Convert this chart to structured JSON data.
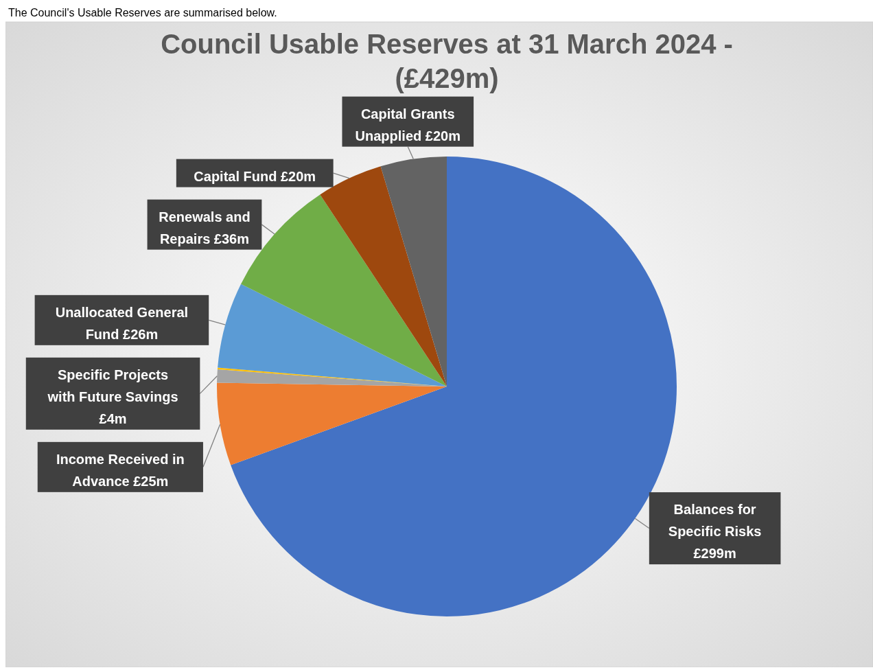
{
  "chart_data": {
    "type": "pie",
    "title": "Council Usable Reserves at 31 March 2024 - (£429m)",
    "annotations": [
      "The Council's Usable Reserves are summarised below."
    ],
    "categories": [
      "Balances for Specific Risks",
      "Income Received in Advance",
      "Specific Projects with Future Savings",
      null,
      "Unallocated General Fund",
      "Renewals and Repairs",
      "Capital Fund",
      "Capital Grants Unapplied"
    ],
    "values": [
      299,
      25,
      4,
      0.5,
      26,
      36,
      20,
      20
    ],
    "value_labels": [
      "£299m",
      "£25m",
      "£4m",
      null,
      "£26m",
      "£36m",
      "£20m",
      "£20m"
    ],
    "colors": [
      "#4472c4",
      "#ed7d31",
      "#a5a5a5",
      "#ffc000",
      "#5b9bd5",
      "#70ad47",
      "#9e480e",
      "#636363"
    ]
  }
}
